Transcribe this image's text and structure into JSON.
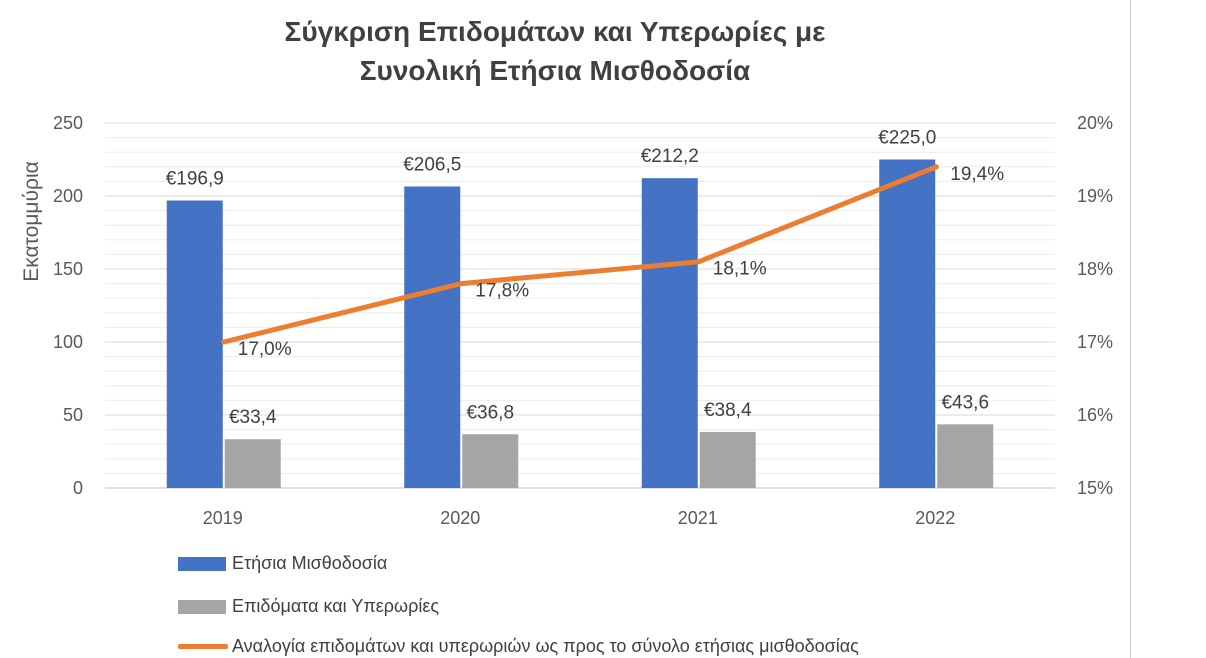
{
  "chart_data": {
    "type": "bar+line",
    "title_line1": "Σύγκριση Επιδομάτων και Υπερωρίες με",
    "title_line2": "Συνολική Ετήσια Μισθοδοσία",
    "ylabel": "Εκατομμύρια",
    "categories": [
      "2019",
      "2020",
      "2021",
      "2022"
    ],
    "ylim": [
      0,
      250
    ],
    "y_ticks": [
      "0",
      "50",
      "100",
      "150",
      "200",
      "250"
    ],
    "y2lim": [
      15,
      20
    ],
    "y2_ticks": [
      "15%",
      "16%",
      "17%",
      "18%",
      "19%",
      "20%"
    ],
    "series": [
      {
        "name": "Ετήσια Μισθοδοσία",
        "kind": "bar",
        "color": "#4472C4",
        "values": [
          196.9,
          206.5,
          212.2,
          225.0
        ],
        "labels": [
          "€196,9",
          "€206,5",
          "€212,2",
          "€225,0"
        ]
      },
      {
        "name": "Επιδόματα και Υπερωρίες",
        "kind": "bar",
        "color": "#A5A5A5",
        "values": [
          33.4,
          36.8,
          38.4,
          43.6
        ],
        "labels": [
          "€33,4",
          "€36,8",
          "€38,4",
          "€43,6"
        ]
      },
      {
        "name": "Αναλογία επιδομάτων και υπερωριών ως προς το σύνολο ετήσιας μισθοδοσίας",
        "kind": "line",
        "axis": "secondary",
        "color": "#ED7D31",
        "values": [
          17.0,
          17.8,
          18.1,
          19.4
        ],
        "labels": [
          "17,0%",
          "17,8%",
          "18,1%",
          "19,4%"
        ]
      }
    ],
    "grid": true,
    "legend_position": "bottom"
  }
}
